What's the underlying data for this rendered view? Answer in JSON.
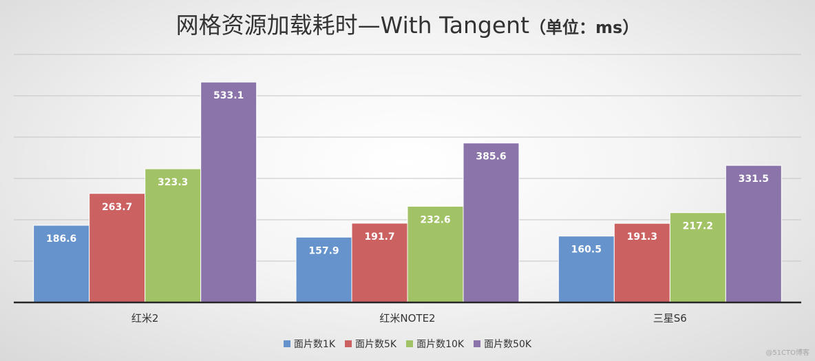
{
  "chart_data": {
    "type": "bar",
    "title": "网格资源加载耗时—With Tangent",
    "title_unit": "（单位：ms）",
    "categories": [
      "红米2",
      "红米NOTE2",
      "三星S6"
    ],
    "series": [
      {
        "name": "面片数1K",
        "color": "#6693cc",
        "values": [
          186.6,
          157.9,
          160.5
        ]
      },
      {
        "name": "面片数5K",
        "color": "#cc6161",
        "values": [
          263.7,
          191.7,
          191.3
        ]
      },
      {
        "name": "面片数10K",
        "color": "#a2c266",
        "values": [
          323.3,
          232.6,
          217.2
        ]
      },
      {
        "name": "面片数50K",
        "color": "#8b74a9",
        "values": [
          533.1,
          385.6,
          331.5
        ]
      }
    ],
    "ylim": [
      0,
      600
    ],
    "grid": true,
    "legend_position": "bottom"
  },
  "watermark": "@51CTO博客"
}
